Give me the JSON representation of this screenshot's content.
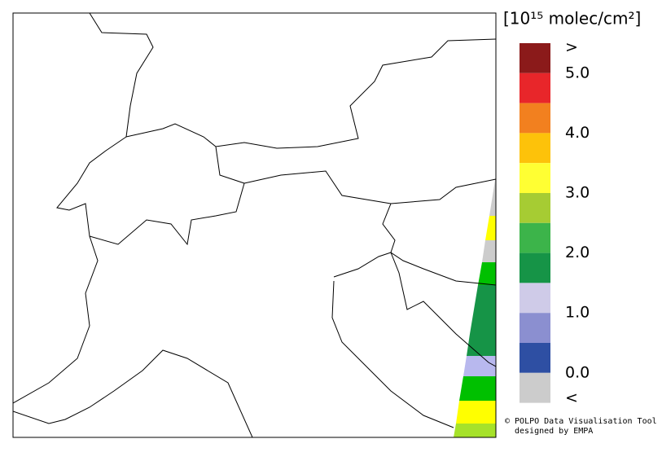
{
  "legend": {
    "title": "[10¹⁵ molec/cm²]",
    "colors": [
      "#8b1a1a",
      "#e8262a",
      "#f2801f",
      "#fdc20a",
      "#ffff33",
      "#a6cc33",
      "#3cb44a",
      "#169447",
      "#cfcbe8",
      "#8b8fd0",
      "#2e4fa3",
      "#cccccc"
    ],
    "labels": [
      ">",
      "5.0",
      "4.0",
      "3.0",
      "2.0",
      "1.0",
      "0.0",
      "<"
    ]
  },
  "credits": {
    "line1": "© POLPO Data Visualisation Tool",
    "line2": "designed by EMPA"
  }
}
